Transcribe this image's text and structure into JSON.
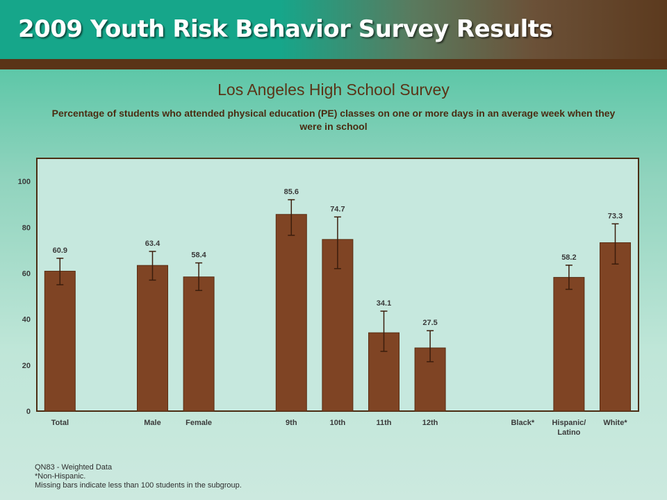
{
  "header": {
    "title": "2009 Youth Risk Behavior Survey Results"
  },
  "chart_data": {
    "type": "bar",
    "title": "Los Angeles High School Survey",
    "subtitle": "Percentage of students who attended physical education (PE) classes on one or more days in an average week when they were in school",
    "categories": [
      "Total",
      "",
      "Male",
      "Female",
      "",
      "9th",
      "10th",
      "11th",
      "12th",
      "",
      "Black*",
      "Hispanic/\nLatino",
      "White*"
    ],
    "values": [
      60.9,
      null,
      63.4,
      58.4,
      null,
      85.6,
      74.7,
      34.1,
      27.5,
      null,
      null,
      58.2,
      73.3
    ],
    "value_labels": [
      "60.9",
      "",
      "63.4",
      "58.4",
      "",
      "85.6",
      "74.7",
      "34.1",
      "27.5",
      "",
      "",
      "58.2",
      "73.3"
    ],
    "error_low": [
      55,
      null,
      57,
      52.5,
      null,
      76.5,
      62,
      26,
      21.5,
      null,
      null,
      53,
      64
    ],
    "error_high": [
      66.5,
      null,
      69.5,
      64.5,
      null,
      92,
      84.5,
      43.5,
      35,
      null,
      null,
      63.5,
      81.5
    ],
    "ylim": [
      0,
      110
    ],
    "yticks": [
      0,
      20,
      40,
      60,
      80,
      100
    ],
    "xlabel": "",
    "ylabel": "",
    "grid": false,
    "colors": {
      "bar": "#7f4424",
      "bar_edge": "#5a2e14",
      "error": "#3b1d0c",
      "plot_bg": "#c6e8de",
      "plot_border": "#4a2c12",
      "label": "#3a3a3a"
    }
  },
  "footnotes": {
    "line1": "QN83 - Weighted Data",
    "line2": "*Non-Hispanic.",
    "line3": "Missing bars indicate less than 100 students in the subgroup."
  }
}
